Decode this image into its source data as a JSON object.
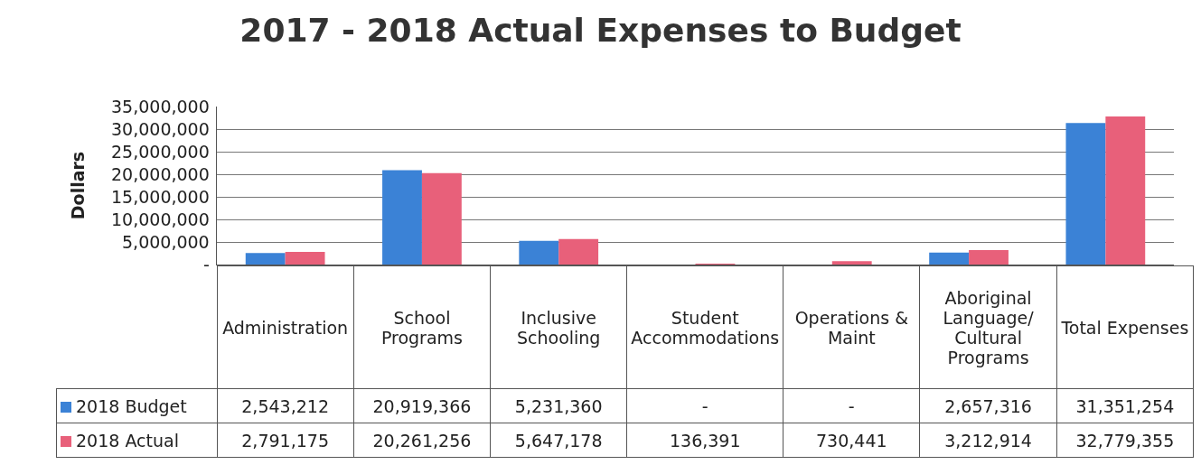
{
  "chart_data": {
    "type": "bar",
    "title": "2017 - 2018 Actual Expenses to Budget",
    "ylabel": "Dollars",
    "categories": [
      "Administration",
      "School Programs",
      "Inclusive Schooling",
      "Student Accommodations",
      "Operations & Maint",
      "Aboriginal Language/ Cultural Programs",
      "Total Expenses"
    ],
    "series": [
      {
        "name": "2018 Budget",
        "color": "#3b82d6",
        "values": [
          2543212,
          20919366,
          5231360,
          null,
          null,
          2657316,
          31351254
        ],
        "value_labels": [
          "2,543,212",
          "20,919,366",
          "5,231,360",
          "-",
          "-",
          "2,657,316",
          "31,351,254"
        ]
      },
      {
        "name": "2018 Actual",
        "color": "#e8607a",
        "values": [
          2791175,
          20261256,
          5647178,
          136391,
          730441,
          3212914,
          32779355
        ],
        "value_labels": [
          "2,791,175",
          "20,261,256",
          "5,647,178",
          "136,391",
          "730,441",
          "3,212,914",
          "32,779,355"
        ]
      }
    ],
    "ylim": [
      0,
      35000000
    ],
    "yticks": [
      {
        "value": 0,
        "label": "-"
      },
      {
        "value": 5000000,
        "label": "5,000,000"
      },
      {
        "value": 10000000,
        "label": "10,000,000"
      },
      {
        "value": 15000000,
        "label": "15,000,000"
      },
      {
        "value": 20000000,
        "label": "20,000,000"
      },
      {
        "value": 25000000,
        "label": "25,000,000"
      },
      {
        "value": 30000000,
        "label": "30,000,000"
      },
      {
        "value": 35000000,
        "label": "35,000,000"
      }
    ],
    "grid": "y",
    "tick_labels": "y",
    "legend": "bottom left"
  }
}
